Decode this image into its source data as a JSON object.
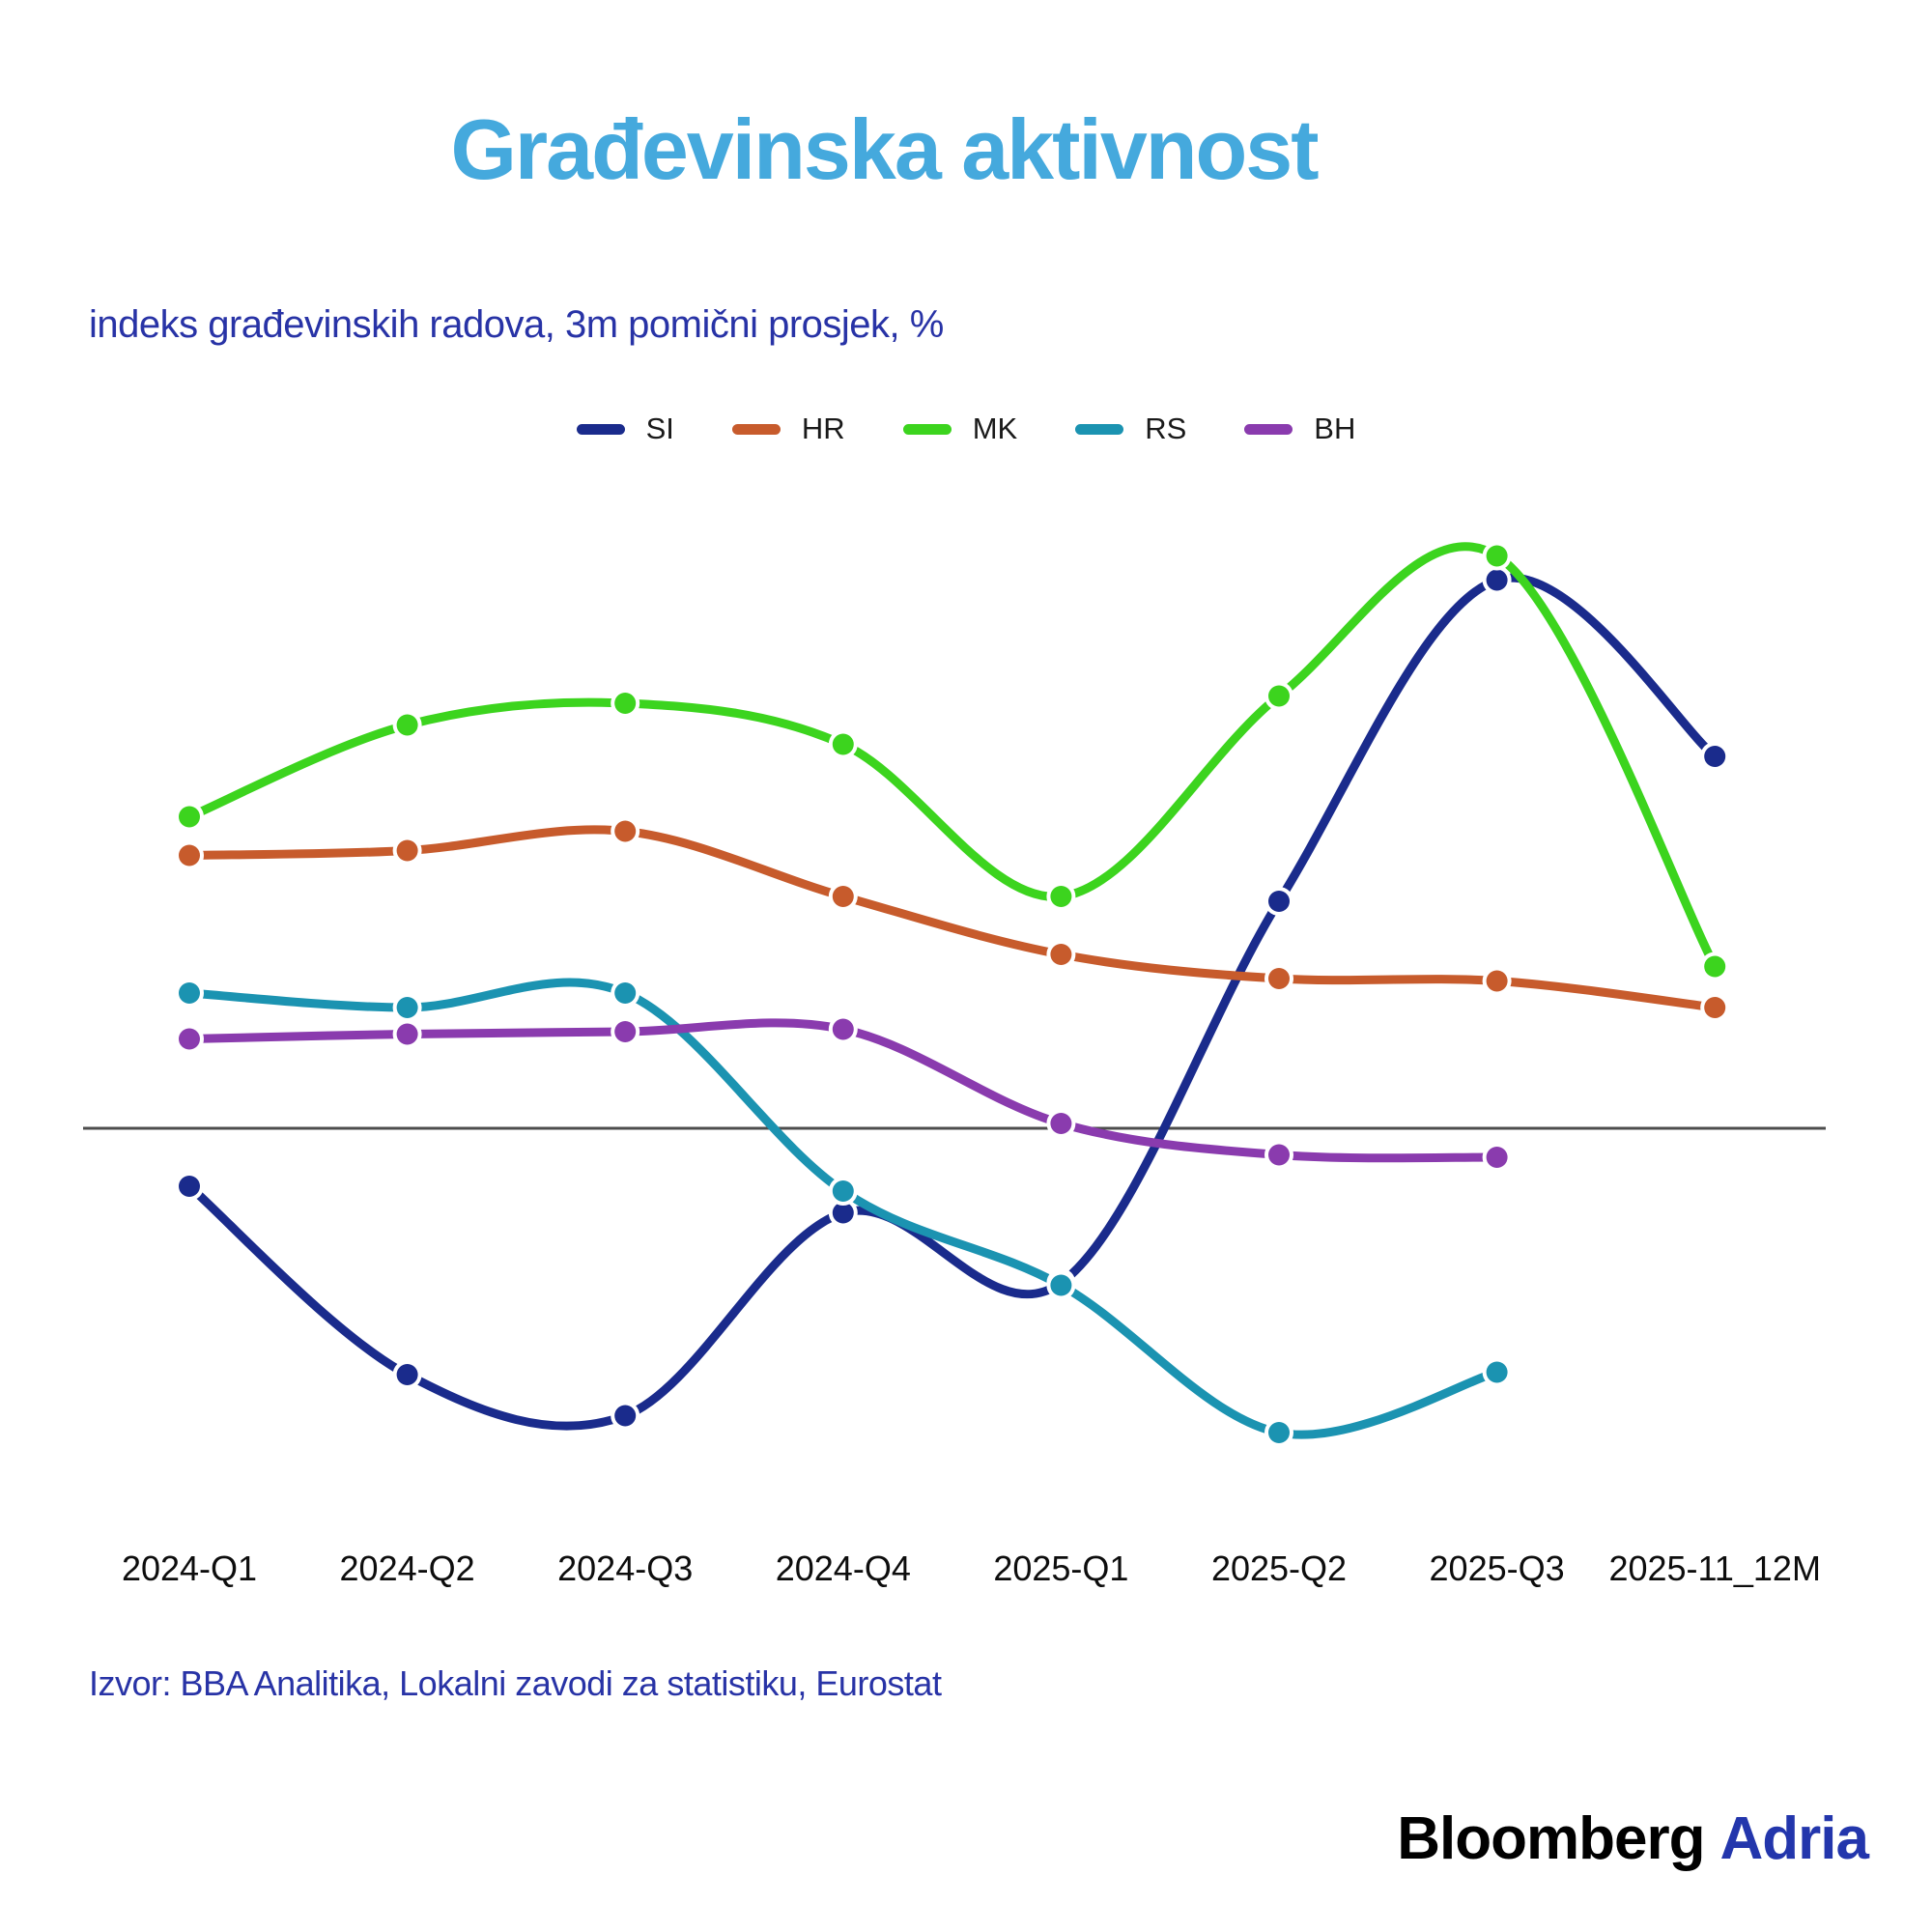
{
  "header": {
    "title": "Građevinska aktivnost",
    "subtitle": "indeks građevinskih radova, 3m pomični prosjek, %"
  },
  "footer": {
    "source": "Izvor: BBA Analitika, Lokalni zavodi za statistiku, Eurostat",
    "logo_black": "Bloomberg",
    "logo_blue": "Adria"
  },
  "colors": {
    "title": "#45A9DD",
    "subtitle": "#2833A6",
    "source": "#2833A6",
    "axis_label": "#0d0d0d",
    "legend_text": "#1a1a1a",
    "zero_line": "#4d4d4d",
    "logo_black": "#000000",
    "logo_blue": "#2336AC",
    "background": "#ffffff"
  },
  "chart_data": {
    "type": "line",
    "title": "Građevinska aktivnost",
    "subtitle": "indeks građevinskih radova, 3m pomični prosjek, %",
    "categories": [
      "2024-Q1",
      "2024-Q2",
      "2024-Q3",
      "2024-Q4",
      "2025-Q1",
      "2025-Q2",
      "2025-Q3",
      "2025-11_12M"
    ],
    "series": [
      {
        "name": "SI",
        "color": "#1A2B8C",
        "values": [
          -2.4,
          -10.2,
          -11.9,
          -3.5,
          -6.4,
          9.4,
          22.7,
          15.4
        ]
      },
      {
        "name": "HR",
        "color": "#C75B2C",
        "values": [
          11.3,
          11.5,
          12.3,
          9.6,
          7.2,
          6.2,
          6.1,
          5.0
        ]
      },
      {
        "name": "MK",
        "color": "#3CD41E",
        "values": [
          12.9,
          16.7,
          17.6,
          15.9,
          9.6,
          17.9,
          23.7,
          6.7
        ]
      },
      {
        "name": "RS",
        "color": "#1B93B1",
        "values": [
          5.6,
          5.0,
          5.6,
          -2.6,
          -6.5,
          -12.6,
          -10.1,
          null
        ]
      },
      {
        "name": "BH",
        "color": "#8A3BAE",
        "values": [
          3.7,
          3.9,
          4.0,
          4.1,
          0.2,
          -1.1,
          -1.2,
          null
        ]
      }
    ],
    "xlabel": "",
    "ylabel": "",
    "ylim": [
      -16,
      24
    ],
    "grid": false,
    "zero_line": true,
    "legend_position": "top-center",
    "marker": "circle",
    "smooth": true
  }
}
